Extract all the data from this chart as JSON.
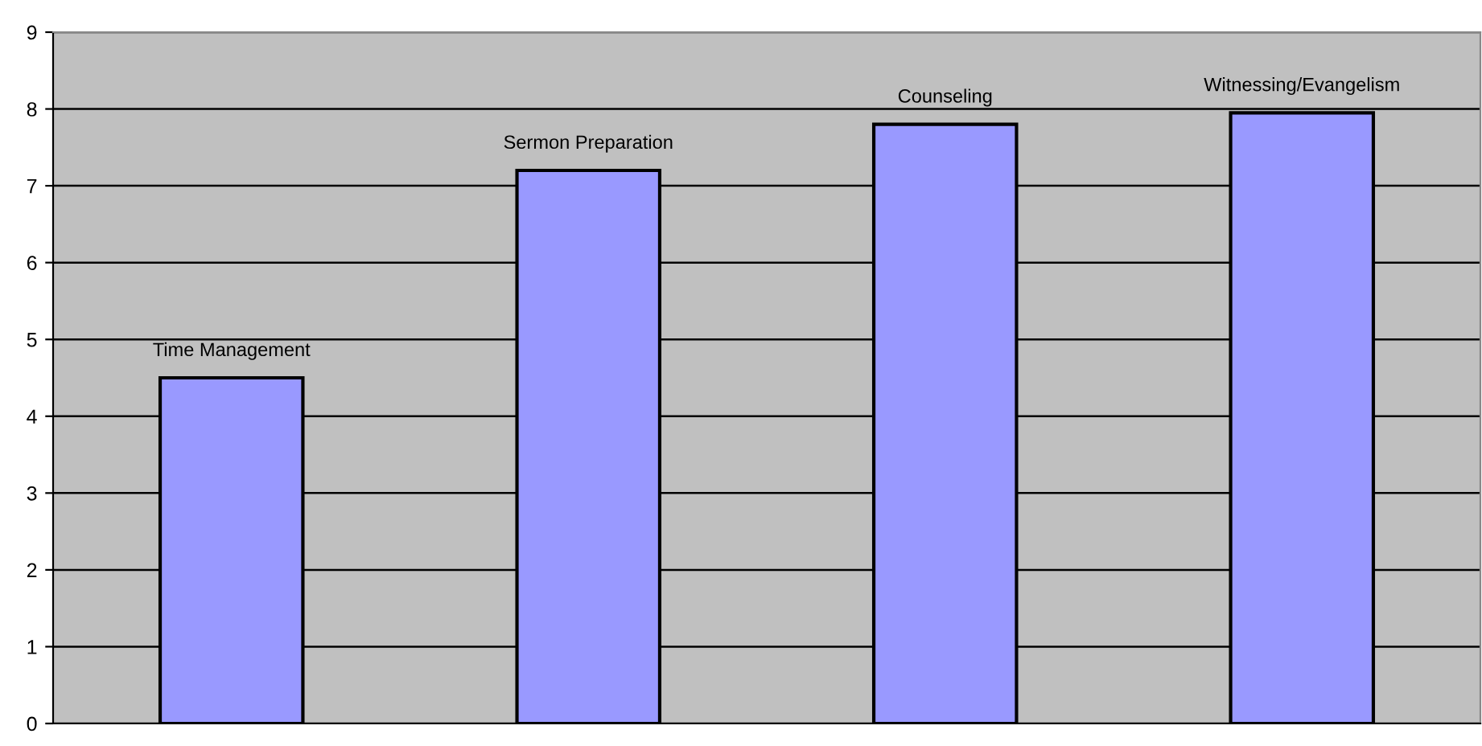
{
  "chart_data": {
    "type": "bar",
    "categories": [
      "Time Management",
      "Sermon Preparation",
      "Counseling",
      "Witnessing/Evangelism"
    ],
    "values": [
      4.5,
      7.2,
      7.8,
      7.95
    ],
    "color": "#9999ff",
    "ylim": [
      0,
      9
    ],
    "yticks": [
      0,
      1,
      2,
      3,
      4,
      5,
      6,
      7,
      8,
      9
    ],
    "grid": "y",
    "legend": false
  }
}
